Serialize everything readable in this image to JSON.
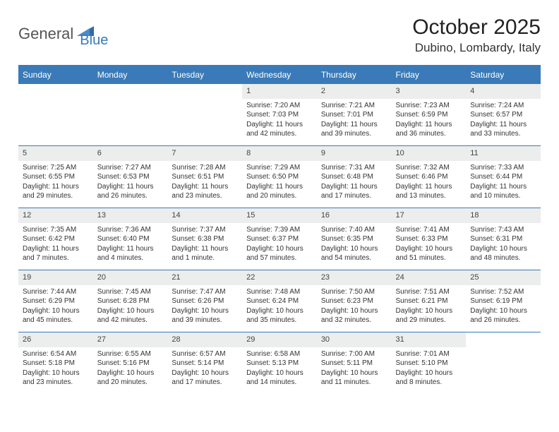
{
  "logo": {
    "word1": "General",
    "word2": "Blue"
  },
  "title": "October 2025",
  "location": "Dubino, Lombardy, Italy",
  "colors": {
    "brand_blue": "#3a7ab8",
    "header_text": "#ffffff",
    "daynum_bg": "#eceded",
    "body_text": "#333333",
    "page_bg": "#ffffff"
  },
  "fonts": {
    "title_size": 30,
    "location_size": 17,
    "header_size": 12,
    "daynum_size": 11,
    "body_size": 10
  },
  "day_headers": [
    "Sunday",
    "Monday",
    "Tuesday",
    "Wednesday",
    "Thursday",
    "Friday",
    "Saturday"
  ],
  "weeks": [
    [
      null,
      null,
      null,
      {
        "n": "1",
        "sr": "Sunrise: 7:20 AM",
        "ss": "Sunset: 7:03 PM",
        "dl": "Daylight: 11 hours and 42 minutes."
      },
      {
        "n": "2",
        "sr": "Sunrise: 7:21 AM",
        "ss": "Sunset: 7:01 PM",
        "dl": "Daylight: 11 hours and 39 minutes."
      },
      {
        "n": "3",
        "sr": "Sunrise: 7:23 AM",
        "ss": "Sunset: 6:59 PM",
        "dl": "Daylight: 11 hours and 36 minutes."
      },
      {
        "n": "4",
        "sr": "Sunrise: 7:24 AM",
        "ss": "Sunset: 6:57 PM",
        "dl": "Daylight: 11 hours and 33 minutes."
      }
    ],
    [
      {
        "n": "5",
        "sr": "Sunrise: 7:25 AM",
        "ss": "Sunset: 6:55 PM",
        "dl": "Daylight: 11 hours and 29 minutes."
      },
      {
        "n": "6",
        "sr": "Sunrise: 7:27 AM",
        "ss": "Sunset: 6:53 PM",
        "dl": "Daylight: 11 hours and 26 minutes."
      },
      {
        "n": "7",
        "sr": "Sunrise: 7:28 AM",
        "ss": "Sunset: 6:51 PM",
        "dl": "Daylight: 11 hours and 23 minutes."
      },
      {
        "n": "8",
        "sr": "Sunrise: 7:29 AM",
        "ss": "Sunset: 6:50 PM",
        "dl": "Daylight: 11 hours and 20 minutes."
      },
      {
        "n": "9",
        "sr": "Sunrise: 7:31 AM",
        "ss": "Sunset: 6:48 PM",
        "dl": "Daylight: 11 hours and 17 minutes."
      },
      {
        "n": "10",
        "sr": "Sunrise: 7:32 AM",
        "ss": "Sunset: 6:46 PM",
        "dl": "Daylight: 11 hours and 13 minutes."
      },
      {
        "n": "11",
        "sr": "Sunrise: 7:33 AM",
        "ss": "Sunset: 6:44 PM",
        "dl": "Daylight: 11 hours and 10 minutes."
      }
    ],
    [
      {
        "n": "12",
        "sr": "Sunrise: 7:35 AM",
        "ss": "Sunset: 6:42 PM",
        "dl": "Daylight: 11 hours and 7 minutes."
      },
      {
        "n": "13",
        "sr": "Sunrise: 7:36 AM",
        "ss": "Sunset: 6:40 PM",
        "dl": "Daylight: 11 hours and 4 minutes."
      },
      {
        "n": "14",
        "sr": "Sunrise: 7:37 AM",
        "ss": "Sunset: 6:38 PM",
        "dl": "Daylight: 11 hours and 1 minute."
      },
      {
        "n": "15",
        "sr": "Sunrise: 7:39 AM",
        "ss": "Sunset: 6:37 PM",
        "dl": "Daylight: 10 hours and 57 minutes."
      },
      {
        "n": "16",
        "sr": "Sunrise: 7:40 AM",
        "ss": "Sunset: 6:35 PM",
        "dl": "Daylight: 10 hours and 54 minutes."
      },
      {
        "n": "17",
        "sr": "Sunrise: 7:41 AM",
        "ss": "Sunset: 6:33 PM",
        "dl": "Daylight: 10 hours and 51 minutes."
      },
      {
        "n": "18",
        "sr": "Sunrise: 7:43 AM",
        "ss": "Sunset: 6:31 PM",
        "dl": "Daylight: 10 hours and 48 minutes."
      }
    ],
    [
      {
        "n": "19",
        "sr": "Sunrise: 7:44 AM",
        "ss": "Sunset: 6:29 PM",
        "dl": "Daylight: 10 hours and 45 minutes."
      },
      {
        "n": "20",
        "sr": "Sunrise: 7:45 AM",
        "ss": "Sunset: 6:28 PM",
        "dl": "Daylight: 10 hours and 42 minutes."
      },
      {
        "n": "21",
        "sr": "Sunrise: 7:47 AM",
        "ss": "Sunset: 6:26 PM",
        "dl": "Daylight: 10 hours and 39 minutes."
      },
      {
        "n": "22",
        "sr": "Sunrise: 7:48 AM",
        "ss": "Sunset: 6:24 PM",
        "dl": "Daylight: 10 hours and 35 minutes."
      },
      {
        "n": "23",
        "sr": "Sunrise: 7:50 AM",
        "ss": "Sunset: 6:23 PM",
        "dl": "Daylight: 10 hours and 32 minutes."
      },
      {
        "n": "24",
        "sr": "Sunrise: 7:51 AM",
        "ss": "Sunset: 6:21 PM",
        "dl": "Daylight: 10 hours and 29 minutes."
      },
      {
        "n": "25",
        "sr": "Sunrise: 7:52 AM",
        "ss": "Sunset: 6:19 PM",
        "dl": "Daylight: 10 hours and 26 minutes."
      }
    ],
    [
      {
        "n": "26",
        "sr": "Sunrise: 6:54 AM",
        "ss": "Sunset: 5:18 PM",
        "dl": "Daylight: 10 hours and 23 minutes."
      },
      {
        "n": "27",
        "sr": "Sunrise: 6:55 AM",
        "ss": "Sunset: 5:16 PM",
        "dl": "Daylight: 10 hours and 20 minutes."
      },
      {
        "n": "28",
        "sr": "Sunrise: 6:57 AM",
        "ss": "Sunset: 5:14 PM",
        "dl": "Daylight: 10 hours and 17 minutes."
      },
      {
        "n": "29",
        "sr": "Sunrise: 6:58 AM",
        "ss": "Sunset: 5:13 PM",
        "dl": "Daylight: 10 hours and 14 minutes."
      },
      {
        "n": "30",
        "sr": "Sunrise: 7:00 AM",
        "ss": "Sunset: 5:11 PM",
        "dl": "Daylight: 10 hours and 11 minutes."
      },
      {
        "n": "31",
        "sr": "Sunrise: 7:01 AM",
        "ss": "Sunset: 5:10 PM",
        "dl": "Daylight: 10 hours and 8 minutes."
      },
      null
    ]
  ]
}
